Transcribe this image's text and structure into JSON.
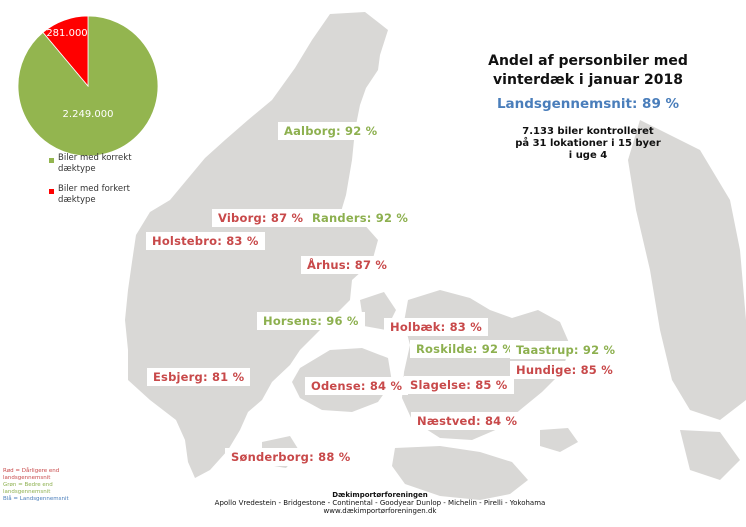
{
  "colors": {
    "good": "#8db04f",
    "bad": "#c8494a",
    "blue": "#4a7ebb",
    "land": "#d9d8d6",
    "pie_correct": "#93b54f",
    "pie_incorrect": "#ff0000"
  },
  "title": {
    "line1": "Andel af personbiler med",
    "line2": "vinterdæk i januar 2018",
    "national": "Landsgennemsnit: 89 %",
    "note1": "7.133 biler kontrolleret",
    "note2": "på 31 lokationer i 15 byer",
    "note3": "i uge 4"
  },
  "chart_data": {
    "type": "pie",
    "slices": [
      {
        "label": "Biler med korrekt dæktype",
        "value": 2249000,
        "display": "2.249.000",
        "color": "#93b54f"
      },
      {
        "label": "Biler med forkert dæktype",
        "value": 281000,
        "display": "281.000",
        "color": "#ff0000"
      }
    ]
  },
  "legend": {
    "correct_1": "Biler med korrekt",
    "correct_2": "dæktype",
    "incorrect_1": "Biler med forkert",
    "incorrect_2": "dæktype"
  },
  "cities": [
    {
      "label": "Aalborg: 92 %",
      "status": "good"
    },
    {
      "label": "Viborg: 87 %",
      "status": "bad"
    },
    {
      "label": "Randers: 92 %",
      "status": "good"
    },
    {
      "label": "Holstebro: 83 %",
      "status": "bad"
    },
    {
      "label": "Århus: 87 %",
      "status": "bad"
    },
    {
      "label": "Horsens: 96 %",
      "status": "good"
    },
    {
      "label": "Holbæk: 83 %",
      "status": "bad"
    },
    {
      "label": "Roskilde: 92 %",
      "status": "good"
    },
    {
      "label": "Taastrup: 92 %",
      "status": "good"
    },
    {
      "label": "Esbjerg: 81 %",
      "status": "bad"
    },
    {
      "label": "Odense: 84 %",
      "status": "bad"
    },
    {
      "label": "Slagelse: 85 %",
      "status": "bad"
    },
    {
      "label": "Hundige: 85 %",
      "status": "bad"
    },
    {
      "label": "Næstved: 84 %",
      "status": "bad"
    },
    {
      "label": "Sønderborg: 88 %",
      "status": "bad"
    }
  ],
  "key": {
    "red_1": "Rød = Dårligere end",
    "red_2": "landsgennemsnit",
    "green_1": "Grøn = Bedre end",
    "green_2": "landsgennemsnit",
    "blue": "Blå = Landsgennemsnit"
  },
  "footer": {
    "org": "Dækimportørforeningen",
    "brands": "Apollo Vredestein - Bridgestone - Continental - Goodyear Dunlop - Michelin - Pirelli - Yokohama",
    "url": "www.dækimportørforeningen.dk"
  }
}
